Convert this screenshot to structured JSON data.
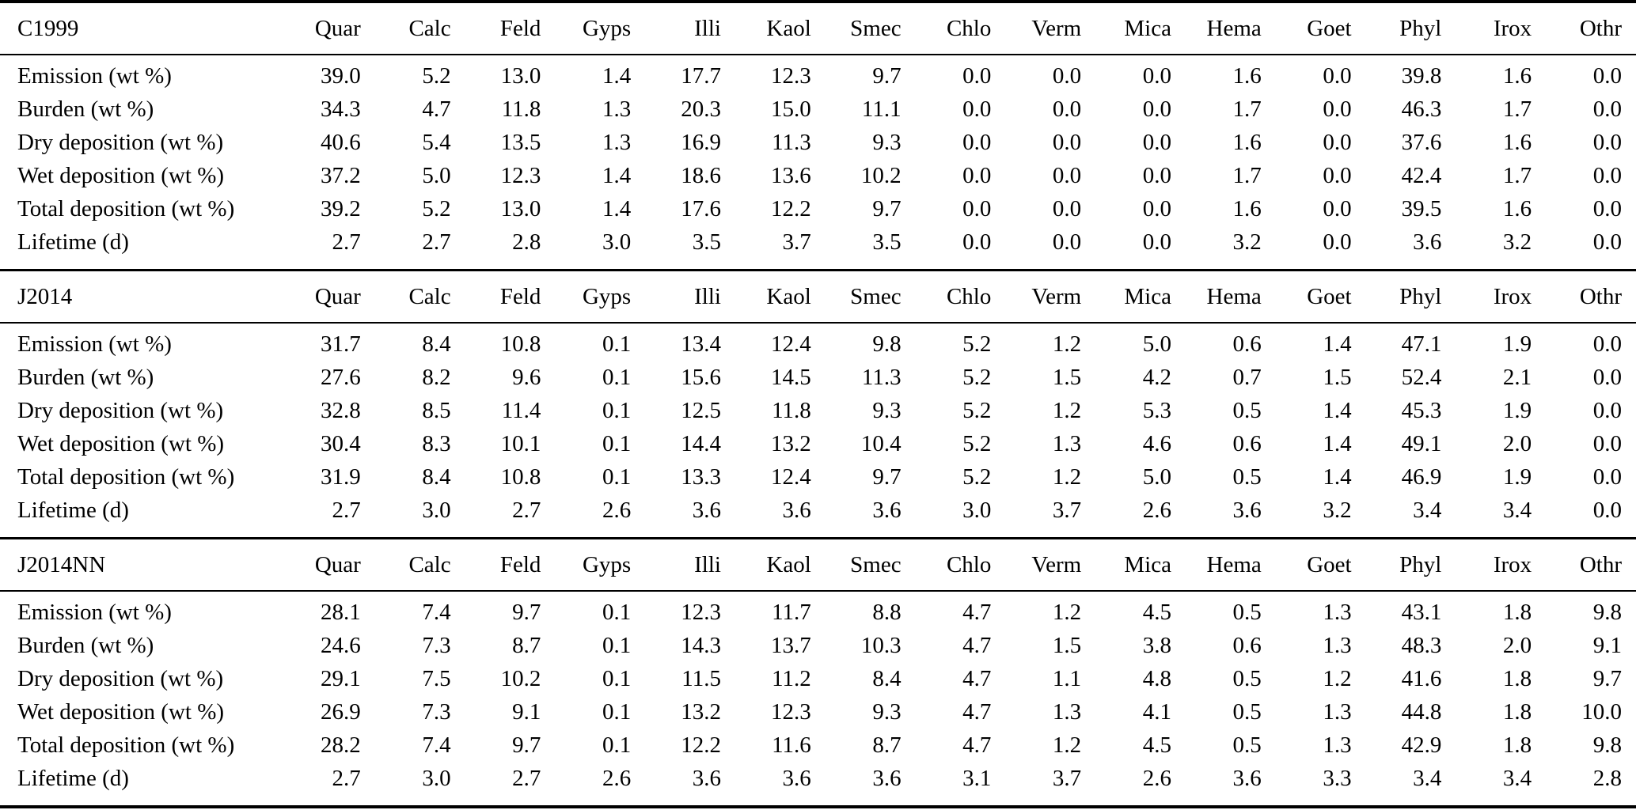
{
  "table": {
    "columns": [
      "Quar",
      "Calc",
      "Feld",
      "Gyps",
      "Illi",
      "Kaol",
      "Smec",
      "Chlo",
      "Verm",
      "Mica",
      "Hema",
      "Goet",
      "Phyl",
      "Irox",
      "Othr"
    ],
    "row_labels": [
      "Emission (wt %)",
      "Burden (wt %)",
      "Dry deposition (wt %)",
      "Wet deposition (wt %)",
      "Total deposition (wt %)",
      "Lifetime (d)"
    ],
    "sections": [
      {
        "name": "C1999",
        "rows": [
          [
            "39.0",
            "5.2",
            "13.0",
            "1.4",
            "17.7",
            "12.3",
            "9.7",
            "0.0",
            "0.0",
            "0.0",
            "1.6",
            "0.0",
            "39.8",
            "1.6",
            "0.0"
          ],
          [
            "34.3",
            "4.7",
            "11.8",
            "1.3",
            "20.3",
            "15.0",
            "11.1",
            "0.0",
            "0.0",
            "0.0",
            "1.7",
            "0.0",
            "46.3",
            "1.7",
            "0.0"
          ],
          [
            "40.6",
            "5.4",
            "13.5",
            "1.3",
            "16.9",
            "11.3",
            "9.3",
            "0.0",
            "0.0",
            "0.0",
            "1.6",
            "0.0",
            "37.6",
            "1.6",
            "0.0"
          ],
          [
            "37.2",
            "5.0",
            "12.3",
            "1.4",
            "18.6",
            "13.6",
            "10.2",
            "0.0",
            "0.0",
            "0.0",
            "1.7",
            "0.0",
            "42.4",
            "1.7",
            "0.0"
          ],
          [
            "39.2",
            "5.2",
            "13.0",
            "1.4",
            "17.6",
            "12.2",
            "9.7",
            "0.0",
            "0.0",
            "0.0",
            "1.6",
            "0.0",
            "39.5",
            "1.6",
            "0.0"
          ],
          [
            "2.7",
            "2.7",
            "2.8",
            "3.0",
            "3.5",
            "3.7",
            "3.5",
            "0.0",
            "0.0",
            "0.0",
            "3.2",
            "0.0",
            "3.6",
            "3.2",
            "0.0"
          ]
        ]
      },
      {
        "name": "J2014",
        "rows": [
          [
            "31.7",
            "8.4",
            "10.8",
            "0.1",
            "13.4",
            "12.4",
            "9.8",
            "5.2",
            "1.2",
            "5.0",
            "0.6",
            "1.4",
            "47.1",
            "1.9",
            "0.0"
          ],
          [
            "27.6",
            "8.2",
            "9.6",
            "0.1",
            "15.6",
            "14.5",
            "11.3",
            "5.2",
            "1.5",
            "4.2",
            "0.7",
            "1.5",
            "52.4",
            "2.1",
            "0.0"
          ],
          [
            "32.8",
            "8.5",
            "11.4",
            "0.1",
            "12.5",
            "11.8",
            "9.3",
            "5.2",
            "1.2",
            "5.3",
            "0.5",
            "1.4",
            "45.3",
            "1.9",
            "0.0"
          ],
          [
            "30.4",
            "8.3",
            "10.1",
            "0.1",
            "14.4",
            "13.2",
            "10.4",
            "5.2",
            "1.3",
            "4.6",
            "0.6",
            "1.4",
            "49.1",
            "2.0",
            "0.0"
          ],
          [
            "31.9",
            "8.4",
            "10.8",
            "0.1",
            "13.3",
            "12.4",
            "9.7",
            "5.2",
            "1.2",
            "5.0",
            "0.5",
            "1.4",
            "46.9",
            "1.9",
            "0.0"
          ],
          [
            "2.7",
            "3.0",
            "2.7",
            "2.6",
            "3.6",
            "3.6",
            "3.6",
            "3.0",
            "3.7",
            "2.6",
            "3.6",
            "3.2",
            "3.4",
            "3.4",
            "0.0"
          ]
        ]
      },
      {
        "name": "J2014NN",
        "rows": [
          [
            "28.1",
            "7.4",
            "9.7",
            "0.1",
            "12.3",
            "11.7",
            "8.8",
            "4.7",
            "1.2",
            "4.5",
            "0.5",
            "1.3",
            "43.1",
            "1.8",
            "9.8"
          ],
          [
            "24.6",
            "7.3",
            "8.7",
            "0.1",
            "14.3",
            "13.7",
            "10.3",
            "4.7",
            "1.5",
            "3.8",
            "0.6",
            "1.3",
            "48.3",
            "2.0",
            "9.1"
          ],
          [
            "29.1",
            "7.5",
            "10.2",
            "0.1",
            "11.5",
            "11.2",
            "8.4",
            "4.7",
            "1.1",
            "4.8",
            "0.5",
            "1.2",
            "41.6",
            "1.8",
            "9.7"
          ],
          [
            "26.9",
            "7.3",
            "9.1",
            "0.1",
            "13.2",
            "12.3",
            "9.3",
            "4.7",
            "1.3",
            "4.1",
            "0.5",
            "1.3",
            "44.8",
            "1.8",
            "10.0"
          ],
          [
            "28.2",
            "7.4",
            "9.7",
            "0.1",
            "12.2",
            "11.6",
            "8.7",
            "4.7",
            "1.2",
            "4.5",
            "0.5",
            "1.3",
            "42.9",
            "1.8",
            "9.8"
          ],
          [
            "2.7",
            "3.0",
            "2.7",
            "2.6",
            "3.6",
            "3.6",
            "3.6",
            "3.1",
            "3.7",
            "2.6",
            "3.6",
            "3.3",
            "3.4",
            "3.4",
            "2.8"
          ]
        ]
      }
    ]
  }
}
